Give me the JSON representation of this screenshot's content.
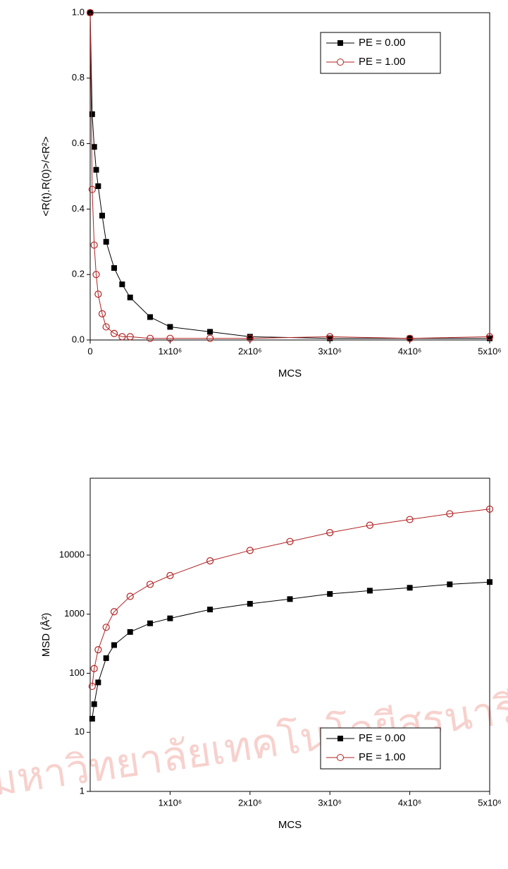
{
  "chart_data": [
    {
      "type": "line",
      "xlabel": "MCS",
      "ylabel": "<R(t).R(0)>/<R²>",
      "x": [
        0,
        25000,
        50000,
        75000,
        100000,
        150000,
        200000,
        300000,
        400000,
        500000,
        750000,
        1000000,
        1500000,
        2000000,
        3000000,
        4000000,
        5000000
      ],
      "series": [
        {
          "name": "PE = 0.00",
          "color": "#000000",
          "marker": "square",
          "values": [
            1.0,
            0.69,
            0.59,
            0.52,
            0.47,
            0.38,
            0.3,
            0.22,
            0.17,
            0.13,
            0.07,
            0.04,
            0.025,
            0.01,
            0.005,
            0.005,
            0.005
          ]
        },
        {
          "name": "PE = 1.00",
          "color": "#b22222",
          "marker": "circle",
          "values": [
            1.0,
            0.46,
            0.29,
            0.2,
            0.14,
            0.08,
            0.04,
            0.02,
            0.01,
            0.01,
            0.005,
            0.005,
            0.005,
            0.005,
            0.01,
            0.005,
            0.01
          ]
        }
      ],
      "xlim": [
        0,
        5000000
      ],
      "xticks": [
        0,
        {
          "value": 1000000,
          "label": "1x10⁶"
        },
        {
          "value": 2000000,
          "label": "2x10⁶"
        },
        {
          "value": 3000000,
          "label": "3x10⁶"
        },
        {
          "value": 4000000,
          "label": "4x10⁶"
        },
        {
          "value": 5000000,
          "label": "5x10⁶"
        }
      ],
      "ylim": [
        0,
        1
      ],
      "yticks": [
        {
          "value": 0,
          "label": "0.0"
        },
        0.2,
        0.4,
        0.6,
        0.8,
        {
          "value": 1,
          "label": "1.0"
        }
      ],
      "log_y": false,
      "legend": "upper right"
    },
    {
      "type": "line",
      "xlabel": "MCS",
      "ylabel": "MSD (Å²)",
      "x": [
        25000,
        50000,
        100000,
        200000,
        300000,
        500000,
        750000,
        1000000,
        1500000,
        2000000,
        2500000,
        3000000,
        3500000,
        4000000,
        4500000,
        5000000
      ],
      "series": [
        {
          "name": "PE = 0.00",
          "color": "#000000",
          "marker": "square",
          "values": [
            17,
            30,
            70,
            180,
            300,
            500,
            700,
            850,
            1200,
            1500,
            1800,
            2200,
            2500,
            2800,
            3200,
            3500
          ]
        },
        {
          "name": "PE = 1.00",
          "color": "#b22222",
          "marker": "circle",
          "values": [
            60,
            120,
            250,
            600,
            1100,
            2000,
            3200,
            4500,
            8000,
            12000,
            17000,
            24000,
            32000,
            40000,
            50000,
            60000
          ]
        }
      ],
      "xlim": [
        0,
        5000000
      ],
      "xticks": [
        {
          "value": 1000000,
          "label": "1x10⁶"
        },
        {
          "value": 2000000,
          "label": "2x10⁶"
        },
        {
          "value": 3000000,
          "label": "3x10⁶"
        },
        {
          "value": 4000000,
          "label": "4x10⁶"
        },
        {
          "value": 5000000,
          "label": "5x10⁶"
        }
      ],
      "ylim": [
        1,
        200000
      ],
      "yticks": [
        1,
        10,
        100,
        1000,
        10000
      ],
      "log_y": true,
      "legend": "lower right"
    }
  ],
  "watermark": "มหาวิทยาลัยเทคโนโลยีสุรนารี"
}
